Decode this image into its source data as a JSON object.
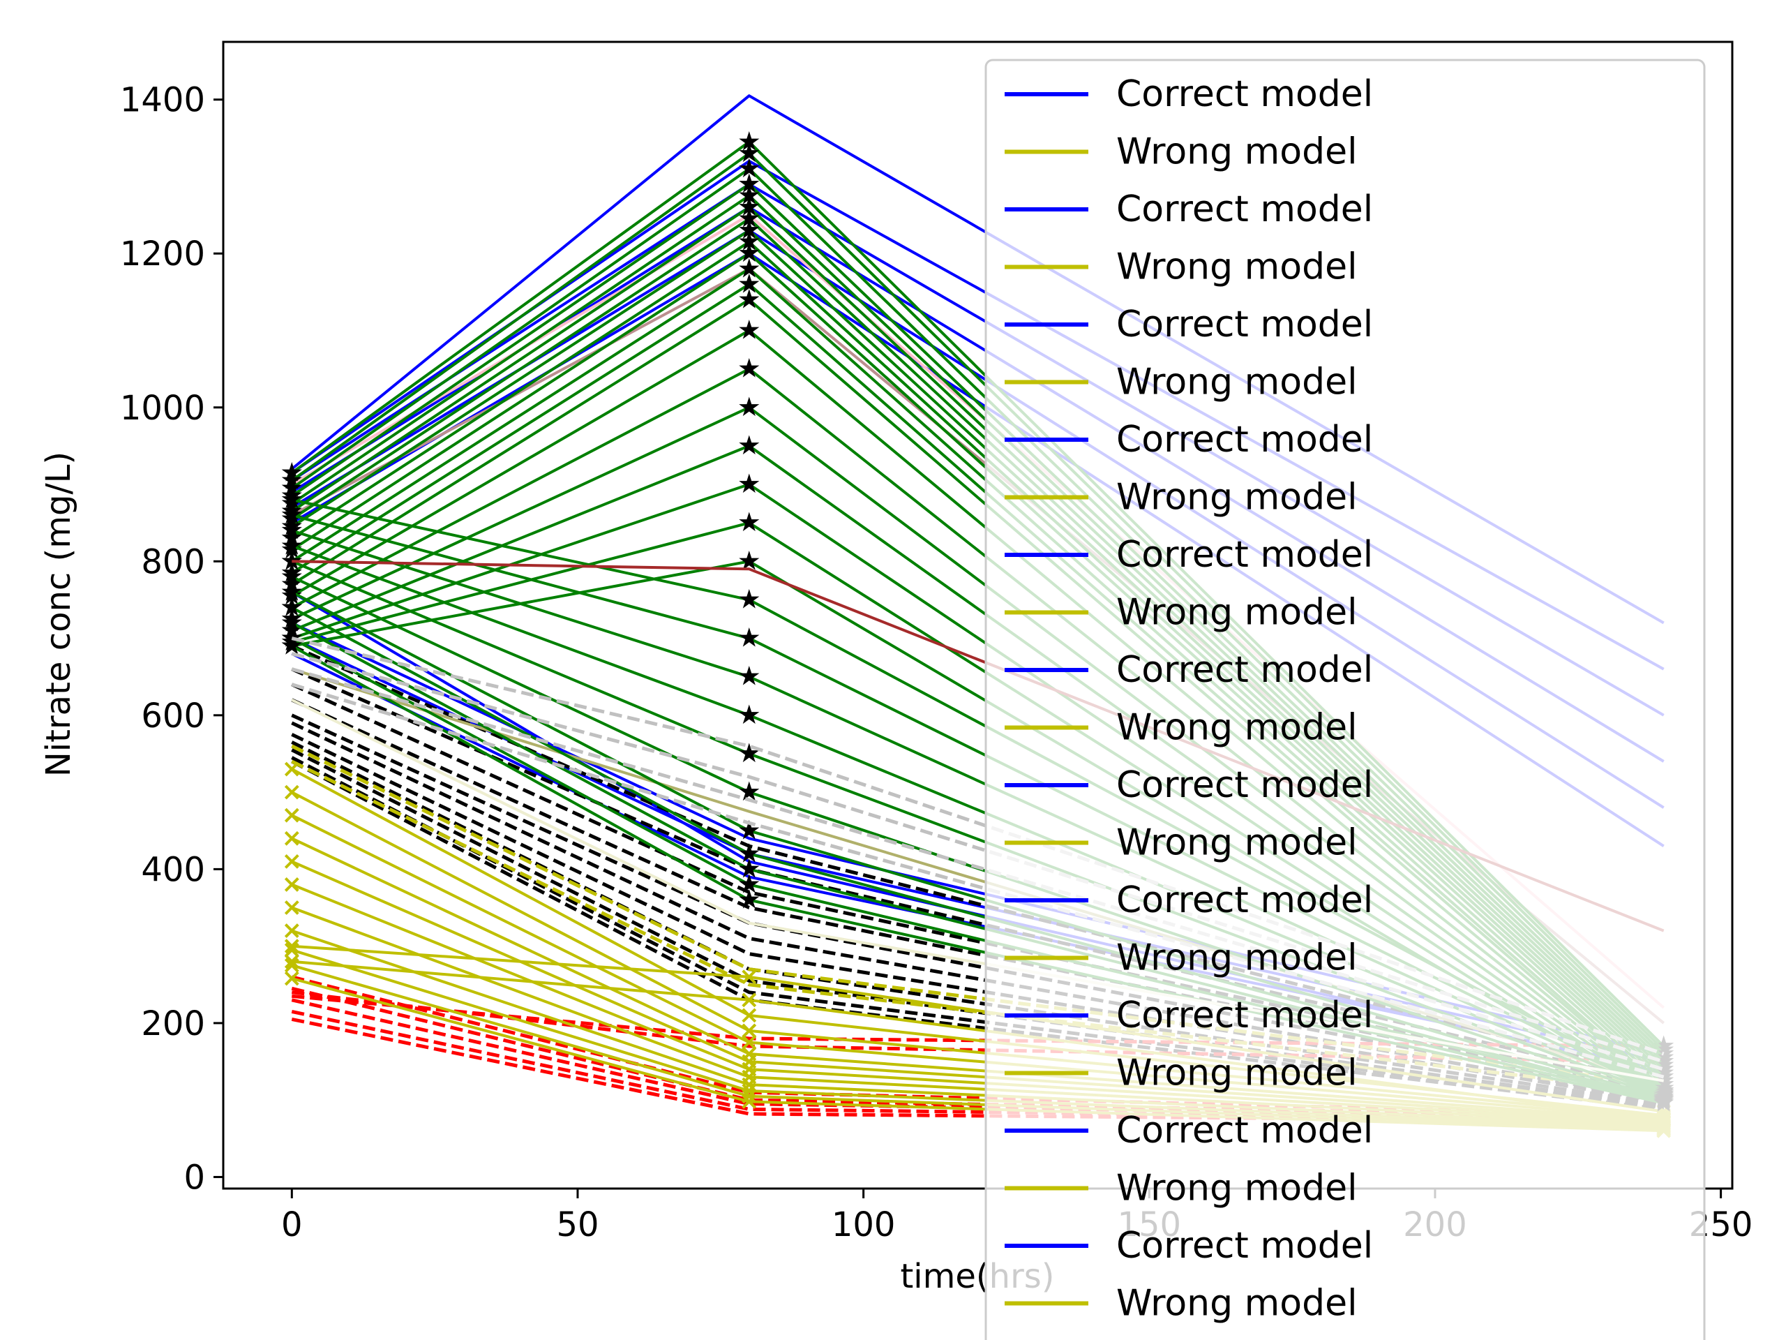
{
  "chart_data": {
    "type": "line",
    "title": "",
    "xlabel": "time(hrs)",
    "ylabel": "Nitrate conc (mg/L)",
    "xlim": [
      -12,
      252
    ],
    "ylim": [
      -15,
      1475
    ],
    "xticks": [
      0,
      50,
      100,
      150,
      200,
      250
    ],
    "yticks": [
      0,
      200,
      400,
      600,
      800,
      1000,
      1200,
      1400
    ],
    "x": [
      0,
      80,
      240
    ],
    "grid": false,
    "legend_position": "upper-right",
    "legend_entries": [
      {
        "label": "Correct model",
        "color": "#0000ff"
      },
      {
        "label": "Wrong model",
        "color": "#bfbf00"
      },
      {
        "label": "Correct model",
        "color": "#0000ff"
      },
      {
        "label": "Wrong model",
        "color": "#bfbf00"
      },
      {
        "label": "Correct model",
        "color": "#0000ff"
      },
      {
        "label": "Wrong model",
        "color": "#bfbf00"
      },
      {
        "label": "Correct model",
        "color": "#0000ff"
      },
      {
        "label": "Wrong model",
        "color": "#bfbf00"
      },
      {
        "label": "Correct model",
        "color": "#0000ff"
      },
      {
        "label": "Wrong model",
        "color": "#bfbf00"
      },
      {
        "label": "Correct model",
        "color": "#0000ff"
      },
      {
        "label": "Wrong model",
        "color": "#bfbf00"
      },
      {
        "label": "Correct model",
        "color": "#0000ff"
      },
      {
        "label": "Wrong model",
        "color": "#bfbf00"
      },
      {
        "label": "Correct model",
        "color": "#0000ff"
      },
      {
        "label": "Wrong model",
        "color": "#bfbf00"
      },
      {
        "label": "Correct model",
        "color": "#0000ff"
      },
      {
        "label": "Wrong model",
        "color": "#bfbf00"
      },
      {
        "label": "Correct model",
        "color": "#0000ff"
      },
      {
        "label": "Wrong model",
        "color": "#bfbf00"
      },
      {
        "label": "Correct model",
        "color": "#0000ff"
      },
      {
        "label": "Wrong model",
        "color": "#bfbf00"
      },
      {
        "label": "Correct model",
        "color": "#0000ff"
      }
    ],
    "series": [
      {
        "color": "#0000ff",
        "style": "solid",
        "marker": "none",
        "values": [
          920,
          1405,
          720
        ]
      },
      {
        "color": "#0000ff",
        "style": "solid",
        "marker": "none",
        "values": [
          915,
          1320,
          660
        ]
      },
      {
        "color": "#0000ff",
        "style": "solid",
        "marker": "none",
        "values": [
          905,
          1290,
          600
        ]
      },
      {
        "color": "#0000ff",
        "style": "solid",
        "marker": "none",
        "values": [
          890,
          1260,
          540
        ]
      },
      {
        "color": "#0000ff",
        "style": "solid",
        "marker": "none",
        "values": [
          870,
          1230,
          480
        ]
      },
      {
        "color": "#0000ff",
        "style": "solid",
        "marker": "none",
        "values": [
          850,
          1200,
          430
        ]
      },
      {
        "color": "#0000ff",
        "style": "solid",
        "marker": "none",
        "values": [
          700,
          420,
          150
        ]
      },
      {
        "color": "#0000ff",
        "style": "solid",
        "marker": "none",
        "values": [
          680,
          390,
          140
        ]
      },
      {
        "color": "#0000ff",
        "style": "solid",
        "marker": "none",
        "values": [
          720,
          440,
          160
        ]
      },
      {
        "color": "#0000ff",
        "style": "solid",
        "marker": "none",
        "values": [
          760,
          410,
          135
        ]
      },
      {
        "color": "#ffc0cb",
        "style": "solid",
        "marker": "none",
        "values": [
          900,
          1250,
          220
        ]
      },
      {
        "color": "#bc8f8f",
        "style": "solid",
        "marker": "none",
        "values": [
          860,
          1180,
          200
        ]
      },
      {
        "color": "#000000",
        "style": "dashed",
        "marker": "none",
        "values": [
          690,
          430,
          130
        ]
      },
      {
        "color": "#000000",
        "style": "dashed",
        "marker": "none",
        "values": [
          660,
          400,
          120
        ]
      },
      {
        "color": "#000000",
        "style": "dashed",
        "marker": "none",
        "values": [
          640,
          370,
          115
        ]
      },
      {
        "color": "#000000",
        "style": "dashed",
        "marker": "none",
        "values": [
          620,
          350,
          110
        ]
      },
      {
        "color": "#000000",
        "style": "dashed",
        "marker": "none",
        "values": [
          600,
          330,
          105
        ]
      },
      {
        "color": "#000000",
        "style": "dashed",
        "marker": "none",
        "values": [
          590,
          310,
          100
        ]
      },
      {
        "color": "#000000",
        "style": "dashed",
        "marker": "none",
        "values": [
          575,
          290,
          98
        ]
      },
      {
        "color": "#000000",
        "style": "dashed",
        "marker": "none",
        "values": [
          565,
          270,
          95
        ]
      },
      {
        "color": "#000000",
        "style": "dashed",
        "marker": "none",
        "values": [
          555,
          255,
          92
        ]
      },
      {
        "color": "#000000",
        "style": "dashed",
        "marker": "none",
        "values": [
          545,
          240,
          90
        ]
      },
      {
        "color": "#000000",
        "style": "dashed",
        "marker": "none",
        "values": [
          540,
          230,
          88
        ]
      },
      {
        "color": "#ff0000",
        "style": "dashed",
        "marker": "none",
        "values": [
          260,
          110,
          80
        ]
      },
      {
        "color": "#ff0000",
        "style": "dashed",
        "marker": "none",
        "values": [
          245,
          100,
          78
        ]
      },
      {
        "color": "#ff0000",
        "style": "dashed",
        "marker": "none",
        "values": [
          230,
          95,
          76
        ]
      },
      {
        "color": "#ff0000",
        "style": "dashed",
        "marker": "none",
        "values": [
          215,
          88,
          74
        ]
      },
      {
        "color": "#ff0000",
        "style": "dashed",
        "marker": "none",
        "values": [
          205,
          82,
          72
        ]
      },
      {
        "color": "#ff0000",
        "style": "dashed",
        "marker": "none",
        "values": [
          240,
          170,
          150
        ]
      },
      {
        "color": "#ff0000",
        "style": "dashed",
        "marker": "none",
        "values": [
          235,
          180,
          170
        ]
      },
      {
        "color": "#bfbf00",
        "style": "solid",
        "marker": "x",
        "values": [
          530,
          210,
          80
        ]
      },
      {
        "color": "#bfbf00",
        "style": "solid",
        "marker": "x",
        "values": [
          500,
          190,
          78
        ]
      },
      {
        "color": "#bfbf00",
        "style": "solid",
        "marker": "x",
        "values": [
          470,
          175,
          76
        ]
      },
      {
        "color": "#bfbf00",
        "style": "solid",
        "marker": "x",
        "values": [
          440,
          160,
          74
        ]
      },
      {
        "color": "#bfbf00",
        "style": "solid",
        "marker": "x",
        "values": [
          410,
          150,
          72
        ]
      },
      {
        "color": "#bfbf00",
        "style": "solid",
        "marker": "x",
        "values": [
          380,
          140,
          70
        ]
      },
      {
        "color": "#bfbf00",
        "style": "solid",
        "marker": "x",
        "values": [
          350,
          130,
          68
        ]
      },
      {
        "color": "#bfbf00",
        "style": "solid",
        "marker": "x",
        "values": [
          320,
          120,
          66
        ]
      },
      {
        "color": "#bfbf00",
        "style": "solid",
        "marker": "x",
        "values": [
          295,
          112,
          64
        ]
      },
      {
        "color": "#bfbf00",
        "style": "solid",
        "marker": "x",
        "values": [
          275,
          105,
          62
        ]
      },
      {
        "color": "#bfbf00",
        "style": "solid",
        "marker": "x",
        "values": [
          258,
          98,
          60
        ]
      },
      {
        "color": "#bfbf00",
        "style": "dashed",
        "marker": "none",
        "values": [
          560,
          270,
          120
        ]
      },
      {
        "color": "#bfbf00",
        "style": "dashed",
        "marker": "none",
        "values": [
          540,
          250,
          110
        ]
      },
      {
        "color": "#bfbf00",
        "style": "solid",
        "marker": "x",
        "values": [
          300,
          260,
          85
        ]
      },
      {
        "color": "#bfbf00",
        "style": "solid",
        "marker": "x",
        "values": [
          280,
          230,
          75
        ]
      },
      {
        "color": "#b0b06a",
        "style": "solid",
        "marker": "none",
        "values": [
          660,
          475,
          120
        ]
      },
      {
        "color": "#008000",
        "style": "solid",
        "marker": "star",
        "values": [
          915,
          1345,
          170
        ]
      },
      {
        "color": "#008000",
        "style": "solid",
        "marker": "star",
        "values": [
          905,
          1330,
          165
        ]
      },
      {
        "color": "#008000",
        "style": "solid",
        "marker": "star",
        "values": [
          895,
          1310,
          160
        ]
      },
      {
        "color": "#008000",
        "style": "solid",
        "marker": "star",
        "values": [
          885,
          1290,
          155
        ]
      },
      {
        "color": "#008000",
        "style": "solid",
        "marker": "star",
        "values": [
          875,
          1275,
          150
        ]
      },
      {
        "color": "#008000",
        "style": "solid",
        "marker": "star",
        "values": [
          865,
          1260,
          145
        ]
      },
      {
        "color": "#008000",
        "style": "solid",
        "marker": "star",
        "values": [
          855,
          1245,
          140
        ]
      },
      {
        "color": "#008000",
        "style": "solid",
        "marker": "star",
        "values": [
          845,
          1230,
          135
        ]
      },
      {
        "color": "#008000",
        "style": "solid",
        "marker": "star",
        "values": [
          830,
          1215,
          130
        ]
      },
      {
        "color": "#008000",
        "style": "solid",
        "marker": "star",
        "values": [
          815,
          1200,
          125
        ]
      },
      {
        "color": "#008000",
        "style": "solid",
        "marker": "star",
        "values": [
          800,
          1180,
          120
        ]
      },
      {
        "color": "#008000",
        "style": "solid",
        "marker": "star",
        "values": [
          785,
          1160,
          115
        ]
      },
      {
        "color": "#008000",
        "style": "solid",
        "marker": "star",
        "values": [
          770,
          1140,
          112
        ]
      },
      {
        "color": "#008000",
        "style": "solid",
        "marker": "star",
        "values": [
          755,
          1100,
          110
        ]
      },
      {
        "color": "#008000",
        "style": "solid",
        "marker": "star",
        "values": [
          740,
          1050,
          108
        ]
      },
      {
        "color": "#008000",
        "style": "solid",
        "marker": "star",
        "values": [
          725,
          1000,
          106
        ]
      },
      {
        "color": "#008000",
        "style": "solid",
        "marker": "star",
        "values": [
          710,
          950,
          104
        ]
      },
      {
        "color": "#008000",
        "style": "solid",
        "marker": "star",
        "values": [
          700,
          900,
          102
        ]
      },
      {
        "color": "#008000",
        "style": "solid",
        "marker": "star",
        "values": [
          695,
          850,
          100
        ]
      },
      {
        "color": "#008000",
        "style": "solid",
        "marker": "star",
        "values": [
          690,
          800,
          100
        ]
      },
      {
        "color": "#008000",
        "style": "solid",
        "marker": "star",
        "values": [
          880,
          750,
          115
        ]
      },
      {
        "color": "#008000",
        "style": "solid",
        "marker": "star",
        "values": [
          860,
          700,
          112
        ]
      },
      {
        "color": "#008000",
        "style": "solid",
        "marker": "star",
        "values": [
          840,
          650,
          110
        ]
      },
      {
        "color": "#008000",
        "style": "solid",
        "marker": "star",
        "values": [
          820,
          600,
          108
        ]
      },
      {
        "color": "#008000",
        "style": "solid",
        "marker": "star",
        "values": [
          800,
          550,
          106
        ]
      },
      {
        "color": "#008000",
        "style": "solid",
        "marker": "star",
        "values": [
          780,
          500,
          104
        ]
      },
      {
        "color": "#008000",
        "style": "solid",
        "marker": "star",
        "values": [
          760,
          450,
          102
        ]
      },
      {
        "color": "#008000",
        "style": "solid",
        "marker": "star",
        "values": [
          740,
          420,
          100
        ]
      },
      {
        "color": "#008000",
        "style": "solid",
        "marker": "star",
        "values": [
          720,
          400,
          100
        ]
      },
      {
        "color": "#008000",
        "style": "solid",
        "marker": "star",
        "values": [
          700,
          380,
          98
        ]
      },
      {
        "color": "#008000",
        "style": "solid",
        "marker": "star",
        "values": [
          690,
          360,
          96
        ]
      },
      {
        "color": "#a52a2a",
        "style": "solid",
        "marker": "none",
        "values": [
          800,
          790,
          320
        ]
      },
      {
        "color": "#c0c0c0",
        "style": "dashed",
        "marker": "none",
        "values": [
          700,
          560,
          160
        ]
      },
      {
        "color": "#c0c0c0",
        "style": "dashed",
        "marker": "none",
        "values": [
          680,
          520,
          150
        ]
      },
      {
        "color": "#c0c0c0",
        "style": "dashed",
        "marker": "none",
        "values": [
          660,
          490,
          140
        ]
      },
      {
        "color": "#c0c0c0",
        "style": "dashed",
        "marker": "none",
        "values": [
          640,
          460,
          130
        ]
      },
      {
        "color": "#eeeed0",
        "style": "solid",
        "marker": "none",
        "values": [
          620,
          330,
          125
        ]
      }
    ]
  }
}
